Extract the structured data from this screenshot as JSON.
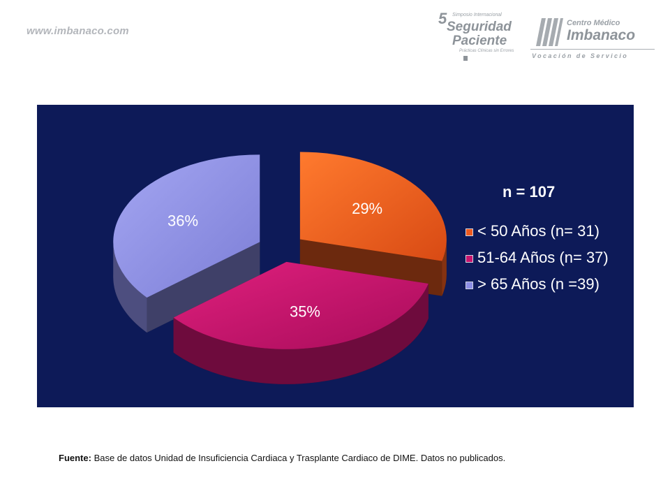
{
  "header": {
    "site_url": "www.imbanaco.com",
    "symposium": {
      "number": "5",
      "line1": "Simposio Internacional",
      "line2": "Seguridad",
      "line3": "Paciente",
      "line4": "Prácticas Clínicas sin Errores"
    },
    "imbanaco": {
      "line1": "Centro Médico",
      "line2": "Imbanaco",
      "line3": "Vocación de Servicio"
    }
  },
  "chart_data": {
    "type": "pie",
    "style": "3d-exploded",
    "n_label": "n = 107",
    "slices": [
      {
        "name": "< 50 Años (n= 31)",
        "value": 29,
        "label": "29%",
        "color": "#f05a1e"
      },
      {
        "name": "51-64 Años (n= 37)",
        "value": 35,
        "label": "35%",
        "color": "#c8146e"
      },
      {
        "name": "> 65 Años (n =39)",
        "value": 36,
        "label": "36%",
        "color": "#8c8ee6"
      }
    ],
    "legend_position": "right",
    "background": "#0d1a58"
  },
  "footnote": {
    "prefix": "Fuente:",
    "text": " Base de datos Unidad de Insuficiencia Cardiaca y Trasplante Cardiaco de DIME. Datos no publicados."
  }
}
